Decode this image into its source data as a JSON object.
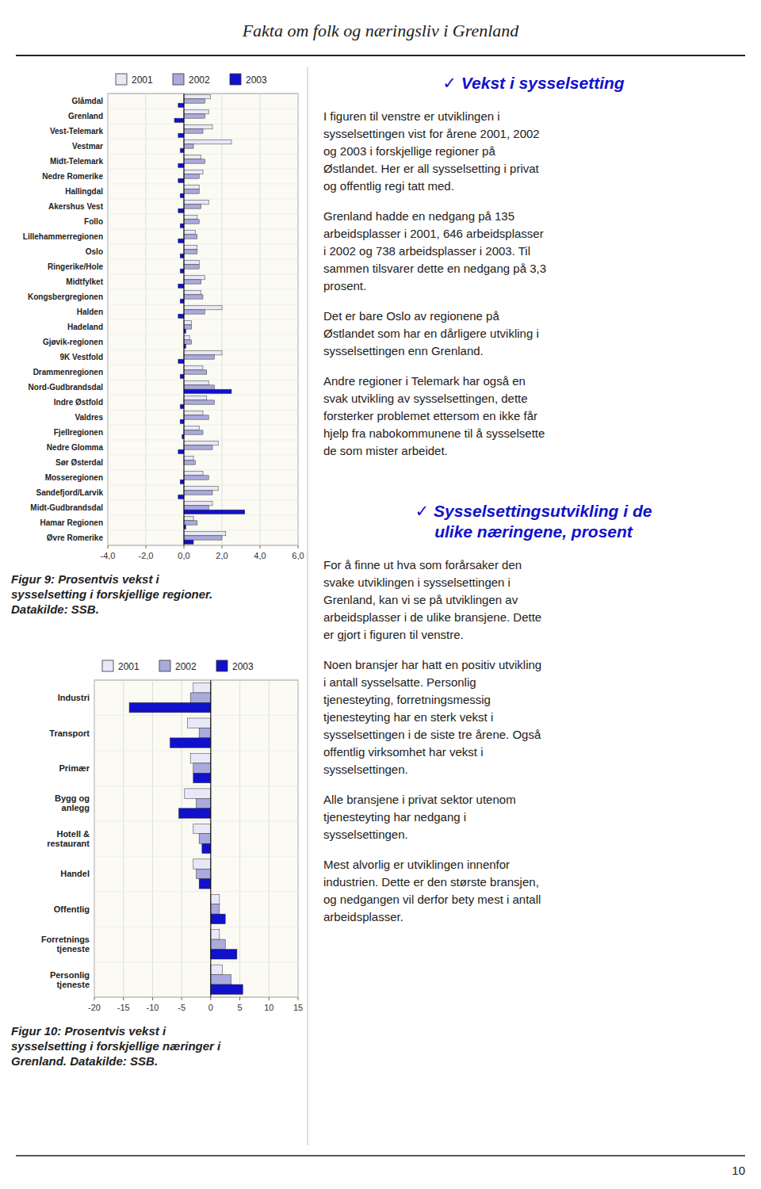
{
  "page_title": "Fakta om folk og næringsliv i Grenland",
  "page_number": "10",
  "text_sections": [
    {
      "title": "✓  Vekst i sysselsetting",
      "paragraphs": [
        "I figuren til venstre er utviklingen i\nsysselsettingen vist for årene 2001, 2002\nog 2003 i forskjellige regioner på\nØstlandet.  Her er all sysselsetting i privat\nog offentlig regi tatt med.",
        "Grenland hadde en nedgang på 135\narbeidsplasser i 2001, 646 arbeidsplasser\ni 2002 og 738 arbeidsplasser i 2003.  Til\nsammen tilsvarer dette en nedgang på 3,3\nprosent.",
        "Det er bare Oslo av regionene på\nØstlandet som har en dårligere utvikling i\nsysselsettingen enn Grenland.",
        "Andre regioner i Telemark har også en\nsvak utvikling av sysselsettingen, dette\nforsterker problemet ettersom en ikke får\nhjelp fra nabokommunene til å sysselsette\nde som mister arbeidet."
      ]
    },
    {
      "title": "✓  Sysselsettingsutvikling i de\nulike næringene, prosent",
      "paragraphs": [
        "For å finne ut hva som forårsaker den\nsvake utviklingen i sysselsettingen i\nGrenland, kan vi se på utviklingen av\narbeidsplasser i de ulike bransjene.  Dette\ner gjort i figuren til venstre.",
        "Noen bransjer har hatt en positiv utvikling\ni antall sysselsatte.  Personlig\ntjenesteyting, forretningsmessig\ntjenesteyting har en sterk vekst i\nsysselsettingen i de siste tre årene.  Også\noffentlig virksomhet har vekst i\nsysselsettingen.",
        "Alle bransjene i privat sektor utenom\ntjenesteyting har nedgang i\nsysselsettingen.",
        "Mest alvorlig er utviklingen innenfor\nindustrien.  Dette er den største bransjen,\nog nedgangen vil derfor bety mest i antall\narbeidsplasser."
      ]
    }
  ],
  "chart_data": [
    {
      "type": "bar",
      "orientation": "horizontal",
      "title": "Figur 9: Prosentvis vekst i\nsysselsetting i forskjellige regioner.\nDatakilde: SSB.",
      "categories": [
        "Øvre Romerike",
        "Hamar Regionen",
        "Midt-Gudbrandsdal",
        "Sandefjord/Larvik",
        "Mosseregionen",
        "Sør Østerdal",
        "Nedre Glomma",
        "Fjellregionen",
        "Valdres",
        "Indre Østfold",
        "Nord-Gudbrandsdal",
        "Drammenregionen",
        "9K Vestfold",
        "Gjøvik-regionen",
        "Hadeland",
        "Halden",
        "Kongsbergregionen",
        "Midtfylket",
        "Ringerike/Hole",
        "Oslo",
        "Lillehammerregionen",
        "Follo",
        "Akershus Vest",
        "Hallingdal",
        "Nedre Romerike",
        "Midt-Telemark",
        "Vestmar",
        "Vest-Telemark",
        "Grenland",
        "Glåmdal"
      ],
      "series": [
        {
          "name": "2001",
          "color": "#e8e8f8",
          "values": [
            2.2,
            0.5,
            1.5,
            1.8,
            1.0,
            0.5,
            1.8,
            0.8,
            1.0,
            1.2,
            1.3,
            1.0,
            2.0,
            0.3,
            0.4,
            2.0,
            0.9,
            1.1,
            0.8,
            0.7,
            0.6,
            0.7,
            1.3,
            0.8,
            1.0,
            0.9,
            2.5,
            1.5,
            1.3,
            1.4
          ]
        },
        {
          "name": "2002",
          "color": "#aaaadd",
          "values": [
            2.0,
            0.7,
            1.3,
            1.5,
            1.3,
            0.6,
            1.5,
            1.0,
            1.3,
            1.6,
            1.6,
            1.2,
            1.6,
            0.4,
            0.4,
            1.1,
            1.0,
            0.9,
            0.8,
            0.7,
            0.7,
            0.8,
            0.9,
            0.8,
            0.8,
            1.1,
            0.5,
            1.0,
            1.1,
            1.1
          ]
        },
        {
          "name": "2003",
          "color": "#1111cc",
          "values": [
            0.5,
            0.1,
            3.2,
            -0.3,
            -0.2,
            0.0,
            -0.3,
            -0.1,
            -0.2,
            -0.2,
            2.5,
            -0.2,
            -0.3,
            0.1,
            0.1,
            -0.3,
            -0.2,
            -0.3,
            -0.2,
            -0.2,
            -0.3,
            -0.2,
            -0.3,
            -0.2,
            -0.3,
            -0.3,
            -0.2,
            -0.3,
            -0.5,
            -0.3
          ]
        }
      ],
      "xlim": [
        -4.0,
        6.0
      ],
      "xticks": [
        {
          "value": -4.0,
          "label": "-4,0"
        },
        {
          "value": -2.0,
          "label": "-2,0"
        },
        {
          "value": 0.0,
          "label": "0,0"
        },
        {
          "value": 2.0,
          "label": "2,0"
        },
        {
          "value": 4.0,
          "label": "4,0"
        },
        {
          "value": 6.0,
          "label": "6,0"
        }
      ],
      "grid": true,
      "legend": "top"
    },
    {
      "type": "bar",
      "orientation": "horizontal",
      "title": "Figur 10: Prosentvis vekst i\nsysselsetting i forskjellige næringer i\nGrenland.  Datakilde: SSB.",
      "categories": [
        "Personlig\ntjeneste",
        "Forretnings\ntjeneste",
        "Offentlig",
        "Handel",
        "Hotell &\nrestaurant",
        "Bygg og\nanlegg",
        "Primær",
        "Transport",
        "Industri"
      ],
      "series": [
        {
          "name": "2001",
          "color": "#e8e8f8",
          "values": [
            2.0,
            1.5,
            1.5,
            -3.0,
            -3.0,
            -4.5,
            -3.5,
            -4.0,
            -3.0
          ]
        },
        {
          "name": "2002",
          "color": "#aaaadd",
          "values": [
            3.5,
            2.5,
            1.5,
            -2.5,
            -2.0,
            -2.5,
            -3.0,
            -2.0,
            -3.5
          ]
        },
        {
          "name": "2003",
          "color": "#1111cc",
          "values": [
            5.5,
            4.5,
            2.5,
            -2.0,
            -1.5,
            -5.5,
            -3.0,
            -7.0,
            -14.0
          ]
        }
      ],
      "xlim": [
        -20,
        15
      ],
      "xticks": [
        -20,
        -15,
        -10,
        -5,
        0,
        5,
        10,
        15
      ],
      "grid": true,
      "legend": "top"
    }
  ]
}
